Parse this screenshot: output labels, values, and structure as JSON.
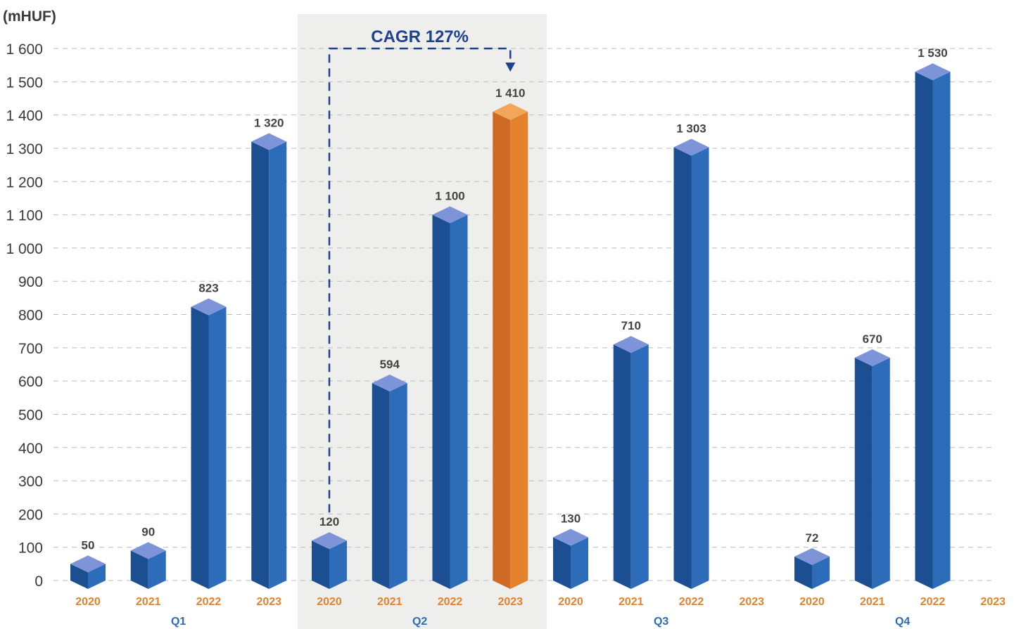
{
  "unit_label": "(mHUF)",
  "annotation": {
    "text": "CAGR 127%"
  },
  "colors": {
    "bar_front": "#2c6cb8",
    "bar_side": "#1b4f91",
    "bar_top": "#7d95d8",
    "highlight_front": "#e4822c",
    "highlight_side": "#cd6a24",
    "highlight_top": "#f1a659",
    "year_label": "#e4822c",
    "quarter_label": "#2c6cb8",
    "highlight_value": "#e4822c",
    "annotation": "#1f3f91",
    "grid": "#bcbcbc",
    "highlight_band": "#eeeeec"
  },
  "chart_data": {
    "type": "bar",
    "ylim": [
      0,
      1600
    ],
    "ytick_step": 100,
    "ytick_labels": [
      "0",
      "100",
      "200",
      "300",
      "400",
      "500",
      "600",
      "700",
      "800",
      "900",
      "1 000",
      "1 100",
      "1 200",
      "1 300",
      "1 400",
      "1 500",
      "1 600"
    ],
    "grid": true,
    "groups": [
      "Q1",
      "Q2",
      "Q3",
      "Q4"
    ],
    "categories": [
      "2020",
      "2021",
      "2022",
      "2023"
    ],
    "values": [
      [
        50,
        90,
        823,
        1320
      ],
      [
        120,
        594,
        1100,
        1410
      ],
      [
        130,
        710,
        1303,
        null
      ],
      [
        72,
        670,
        1530,
        null
      ]
    ],
    "value_labels": [
      [
        "50",
        "90",
        "823",
        "1 320"
      ],
      [
        "120",
        "594",
        "1 100",
        "1 410"
      ],
      [
        "130",
        "710",
        "1 303",
        ""
      ],
      [
        "72",
        "670",
        "1 530",
        ""
      ]
    ],
    "highlight": {
      "group": 1,
      "category": 3
    },
    "highlight_group": 1
  }
}
